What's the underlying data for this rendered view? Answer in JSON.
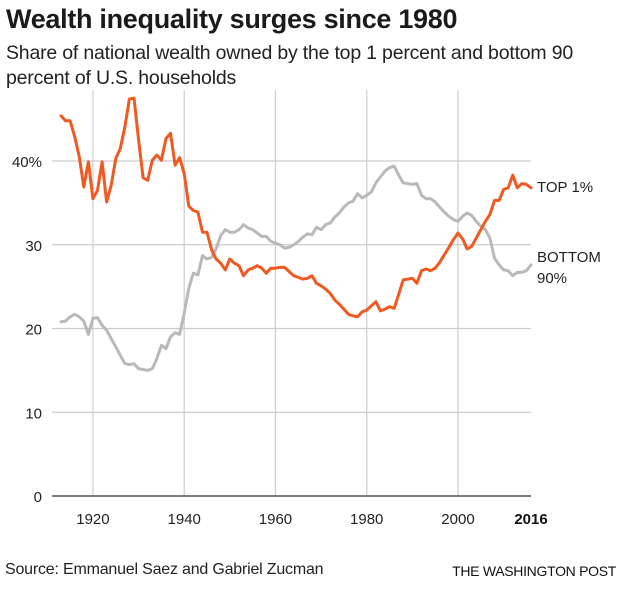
{
  "header": {
    "title": "Wealth inequality surges since 1980",
    "subtitle": "Share of national wealth owned by the top 1 percent and bottom 90 percent of U.S. households"
  },
  "footer": {
    "source": "Source: Emmanuel Saez and Gabriel Zucman",
    "credit": "THE WASHINGTON POST"
  },
  "colors": {
    "top1": "#f05a22",
    "bottom90": "#b9b9b9",
    "grid": "#cccccc",
    "baseline": "#555555"
  },
  "chart_data": {
    "type": "line",
    "title": "Wealth inequality surges since 1980",
    "subtitle": "Share of national wealth owned by the top 1 percent and bottom 90 percent of U.S. households",
    "xlabel": "",
    "ylabel": "",
    "xlim": [
      1913,
      2016
    ],
    "ylim": [
      0,
      48
    ],
    "grid": true,
    "x_ticks": [
      1920,
      1940,
      1960,
      1980,
      2000,
      2016
    ],
    "x_tick_labels": [
      "1920",
      "1940",
      "1960",
      "1980",
      "2000",
      "2016"
    ],
    "x_tick_bold": [
      false,
      false,
      false,
      false,
      false,
      true
    ],
    "y_ticks": [
      0,
      10,
      20,
      30,
      40
    ],
    "y_tick_labels": [
      "0",
      "10",
      "20",
      "30",
      "40%"
    ],
    "legend": "direct labels at right end of lines",
    "x": [
      1913,
      1914,
      1915,
      1916,
      1917,
      1918,
      1919,
      1920,
      1921,
      1922,
      1923,
      1924,
      1925,
      1926,
      1927,
      1928,
      1929,
      1930,
      1931,
      1932,
      1933,
      1934,
      1935,
      1936,
      1937,
      1938,
      1939,
      1940,
      1941,
      1942,
      1943,
      1944,
      1945,
      1946,
      1947,
      1948,
      1949,
      1950,
      1951,
      1952,
      1953,
      1954,
      1955,
      1956,
      1957,
      1958,
      1959,
      1960,
      1961,
      1962,
      1963,
      1964,
      1965,
      1966,
      1967,
      1968,
      1969,
      1970,
      1971,
      1972,
      1973,
      1974,
      1975,
      1976,
      1977,
      1978,
      1979,
      1980,
      1981,
      1982,
      1983,
      1984,
      1985,
      1986,
      1987,
      1988,
      1989,
      1990,
      1991,
      1992,
      1993,
      1994,
      1995,
      1996,
      1997,
      1998,
      1999,
      2000,
      2001,
      2002,
      2003,
      2004,
      2005,
      2006,
      2007,
      2008,
      2009,
      2010,
      2011,
      2012,
      2013,
      2014,
      2015,
      2016
    ],
    "series": [
      {
        "name": "TOP 1%",
        "color": "#f05a22",
        "values": [
          45.4,
          44.8,
          44.8,
          42.9,
          40.5,
          36.9,
          39.9,
          35.5,
          36.5,
          39.9,
          35.1,
          37.1,
          40.3,
          41.5,
          44.1,
          47.4,
          47.5,
          42.5,
          38.0,
          37.7,
          40.1,
          40.7,
          40.1,
          42.7,
          43.3,
          39.5,
          40.4,
          38.5,
          34.6,
          34.1,
          33.9,
          31.5,
          31.5,
          29.4,
          28.3,
          27.8,
          27.0,
          28.3,
          27.8,
          27.5,
          26.3,
          27.0,
          27.2,
          27.5,
          27.2,
          26.6,
          27.2,
          27.2,
          27.3,
          27.3,
          26.8,
          26.3,
          26.1,
          25.9,
          26.0,
          26.3,
          25.4,
          25.1,
          24.7,
          24.2,
          23.4,
          22.9,
          22.3,
          21.7,
          21.5,
          21.4,
          22.0,
          22.2,
          22.7,
          23.2,
          22.1,
          22.3,
          22.6,
          22.4,
          24.1,
          25.8,
          25.9,
          26.0,
          25.4,
          26.9,
          27.1,
          26.9,
          27.2,
          27.9,
          28.8,
          29.7,
          30.6,
          31.4,
          30.7,
          29.5,
          29.8,
          30.8,
          31.8,
          32.8,
          33.6,
          35.3,
          35.3,
          36.6,
          36.8,
          38.3,
          36.8,
          37.3,
          37.2,
          36.8
        ]
      },
      {
        "name": "BOTTOM 90%",
        "color": "#b9b9b9",
        "values": [
          20.8,
          20.9,
          21.4,
          21.7,
          21.4,
          20.9,
          19.3,
          21.2,
          21.3,
          20.4,
          19.8,
          18.8,
          17.8,
          16.8,
          15.8,
          15.7,
          15.8,
          15.2,
          15.1,
          15.0,
          15.2,
          16.4,
          18.0,
          17.6,
          19.0,
          19.5,
          19.3,
          21.8,
          24.8,
          26.6,
          26.4,
          28.7,
          28.3,
          28.5,
          29.5,
          31.1,
          31.8,
          31.5,
          31.5,
          31.8,
          32.4,
          32.0,
          31.8,
          31.4,
          31.0,
          31.0,
          30.4,
          30.2,
          30.0,
          29.6,
          29.7,
          30.0,
          30.4,
          30.9,
          31.3,
          31.2,
          32.1,
          31.8,
          32.4,
          32.6,
          33.3,
          33.8,
          34.5,
          35.0,
          35.2,
          36.1,
          35.6,
          35.9,
          36.3,
          37.4,
          38.1,
          38.8,
          39.2,
          39.4,
          38.3,
          37.4,
          37.3,
          37.2,
          37.3,
          35.9,
          35.5,
          35.5,
          35.1,
          34.5,
          33.9,
          33.4,
          33.0,
          32.8,
          33.4,
          33.8,
          33.5,
          32.8,
          32.2,
          31.8,
          30.8,
          28.4,
          27.6,
          27.0,
          26.9,
          26.3,
          26.7,
          26.7,
          26.9,
          27.6
        ]
      }
    ],
    "series_labels": [
      {
        "series": "TOP 1%",
        "lines": [
          "TOP 1%"
        ]
      },
      {
        "series": "BOTTOM 90%",
        "lines": [
          "BOTTOM",
          "90%"
        ]
      }
    ]
  }
}
